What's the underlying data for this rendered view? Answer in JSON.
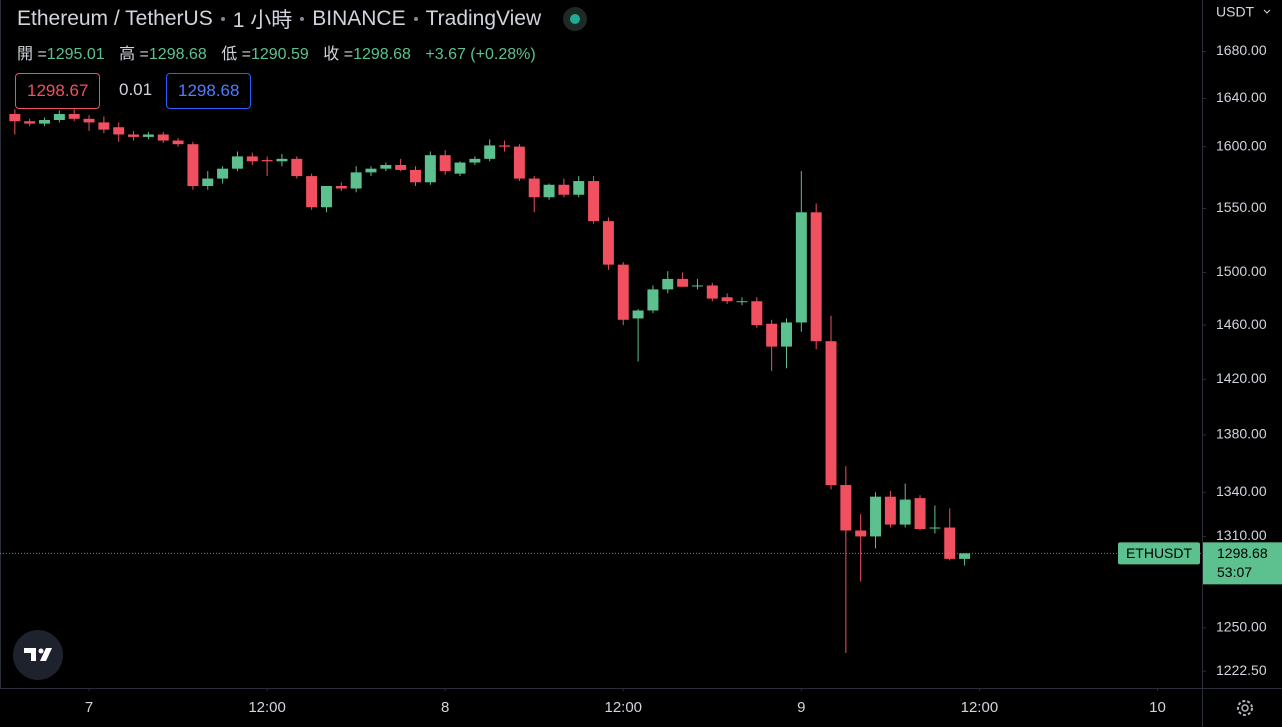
{
  "header": {
    "title": "Ethereum / TetherUS",
    "interval": "1 小時",
    "exchange": "BINANCE",
    "source": "TradingView"
  },
  "legend": {
    "open_label": "開 =",
    "open": 1295.01,
    "high_label": "高 =",
    "high": 1298.68,
    "low_label": "低 =",
    "low": 1290.59,
    "close_label": "收 =",
    "close": 1298.68,
    "change": "+3.67 (+0.28%)"
  },
  "order_panel": {
    "bid": 1298.67,
    "spread": 0.01,
    "ask": 1298.68
  },
  "chart_data": {
    "type": "candlestick",
    "x": [
      -5,
      -4,
      -3,
      -2,
      -1,
      0,
      1,
      2,
      3,
      4,
      5,
      6,
      7,
      8,
      9,
      10,
      11,
      12,
      13,
      14,
      15,
      16,
      17,
      18,
      19,
      20,
      21,
      22,
      23,
      24,
      25,
      26,
      27,
      28,
      29,
      30,
      31,
      32,
      33,
      34,
      35,
      36,
      37,
      38,
      39,
      40,
      41,
      42,
      43,
      44,
      45,
      46,
      47,
      48,
      49,
      50,
      51,
      52,
      53,
      54,
      55,
      56,
      57,
      58,
      59
    ],
    "open": [
      1627,
      1621,
      1619,
      1622,
      1627,
      1623,
      1620,
      1616,
      1610,
      1608,
      1610,
      1605,
      1602,
      1568,
      1574,
      1582,
      1592,
      1589,
      1588,
      1590,
      1576,
      1551,
      1568,
      1566,
      1579,
      1582,
      1585,
      1581,
      1571,
      1593,
      1578,
      1587,
      1590,
      1601,
      1600,
      1574,
      1559,
      1569,
      1561,
      1572,
      1540,
      1506,
      1465,
      1471,
      1487,
      1495,
      1490,
      1490,
      1481,
      1478,
      1478,
      1461,
      1444,
      1462,
      1547,
      1448,
      1345,
      1314,
      1310,
      1337,
      1318,
      1336,
      1316,
      1316,
      1295.01
    ],
    "high": [
      1631,
      1623,
      1624,
      1630,
      1631,
      1626,
      1625,
      1620,
      1613,
      1612,
      1612,
      1607,
      1604,
      1580,
      1584,
      1596,
      1595,
      1592,
      1594,
      1592,
      1578,
      1568,
      1571,
      1584,
      1584,
      1587,
      1590,
      1584,
      1596,
      1597,
      1588,
      1592,
      1606,
      1605,
      1602,
      1576,
      1570,
      1574,
      1576,
      1576,
      1543,
      1508,
      1472,
      1490,
      1501,
      1500,
      1495,
      1492,
      1484,
      1481,
      1481,
      1464,
      1465,
      1580,
      1554,
      1467,
      1358,
      1325,
      1340,
      1341,
      1346,
      1338,
      1331,
      1329,
      1298.68
    ],
    "low": [
      1610,
      1617,
      1617,
      1620,
      1621,
      1613,
      1611,
      1604,
      1605,
      1606,
      1603,
      1600,
      1565,
      1565,
      1570,
      1580,
      1585,
      1576,
      1584,
      1574,
      1549,
      1547,
      1564,
      1563,
      1576,
      1580,
      1580,
      1568,
      1569,
      1577,
      1576,
      1585,
      1588,
      1596,
      1572,
      1547,
      1557,
      1559,
      1559,
      1538,
      1502,
      1460,
      1433,
      1469,
      1484,
      1489,
      1487,
      1478,
      1476,
      1475,
      1458,
      1426,
      1428,
      1455,
      1442,
      1342,
      1234,
      1280,
      1302,
      1316,
      1316,
      1314,
      1312,
      1294,
      1290.59
    ],
    "close": [
      1621,
      1619,
      1622,
      1627,
      1623,
      1620,
      1614,
      1610,
      1608,
      1610,
      1605,
      1602,
      1568,
      1574,
      1582,
      1592,
      1588,
      1588,
      1590,
      1576,
      1551,
      1568,
      1566,
      1579,
      1582,
      1585,
      1581,
      1571,
      1593,
      1580,
      1587,
      1590,
      1601,
      1600,
      1574,
      1559,
      1569,
      1561,
      1572,
      1540,
      1506,
      1464,
      1471,
      1487,
      1495,
      1489,
      1490,
      1480,
      1478,
      1478,
      1460,
      1444,
      1462,
      1547,
      1448,
      1345,
      1314,
      1310,
      1337,
      1318,
      1335,
      1315,
      1316,
      1295,
      1298.68
    ],
    "up_color": "#5cc18f",
    "down_color": "#f0505f",
    "ylim": [
      1212,
      1725
    ],
    "log_scale": true,
    "yticks": [
      {
        "value": 1680,
        "label": "1680.00"
      },
      {
        "value": 1640,
        "label": "1640.00"
      },
      {
        "value": 1600,
        "label": "1600.00"
      },
      {
        "value": 1550,
        "label": "1550.00"
      },
      {
        "value": 1500,
        "label": "1500.00"
      },
      {
        "value": 1460,
        "label": "1460.00"
      },
      {
        "value": 1420,
        "label": "1420.00"
      },
      {
        "value": 1380,
        "label": "1380.00"
      },
      {
        "value": 1340,
        "label": "1340.00"
      },
      {
        "value": 1310,
        "label": "1310.00"
      },
      {
        "value": 1250,
        "label": "1250.00"
      },
      {
        "value": 1222.5,
        "label": "1222.50"
      }
    ],
    "xlim": [
      -6,
      75
    ],
    "xticks": [
      {
        "value": 0,
        "label": "7"
      },
      {
        "value": 12,
        "label": "12:00"
      },
      {
        "value": 24,
        "label": "8"
      },
      {
        "value": 36,
        "label": "12:00"
      },
      {
        "value": 48,
        "label": "9"
      },
      {
        "value": 60,
        "label": "12:00"
      },
      {
        "value": 72,
        "label": "10"
      }
    ],
    "currency": "USDT",
    "symbol": "ETHUSDT",
    "last_price": 1298.68,
    "countdown": "53:07"
  }
}
